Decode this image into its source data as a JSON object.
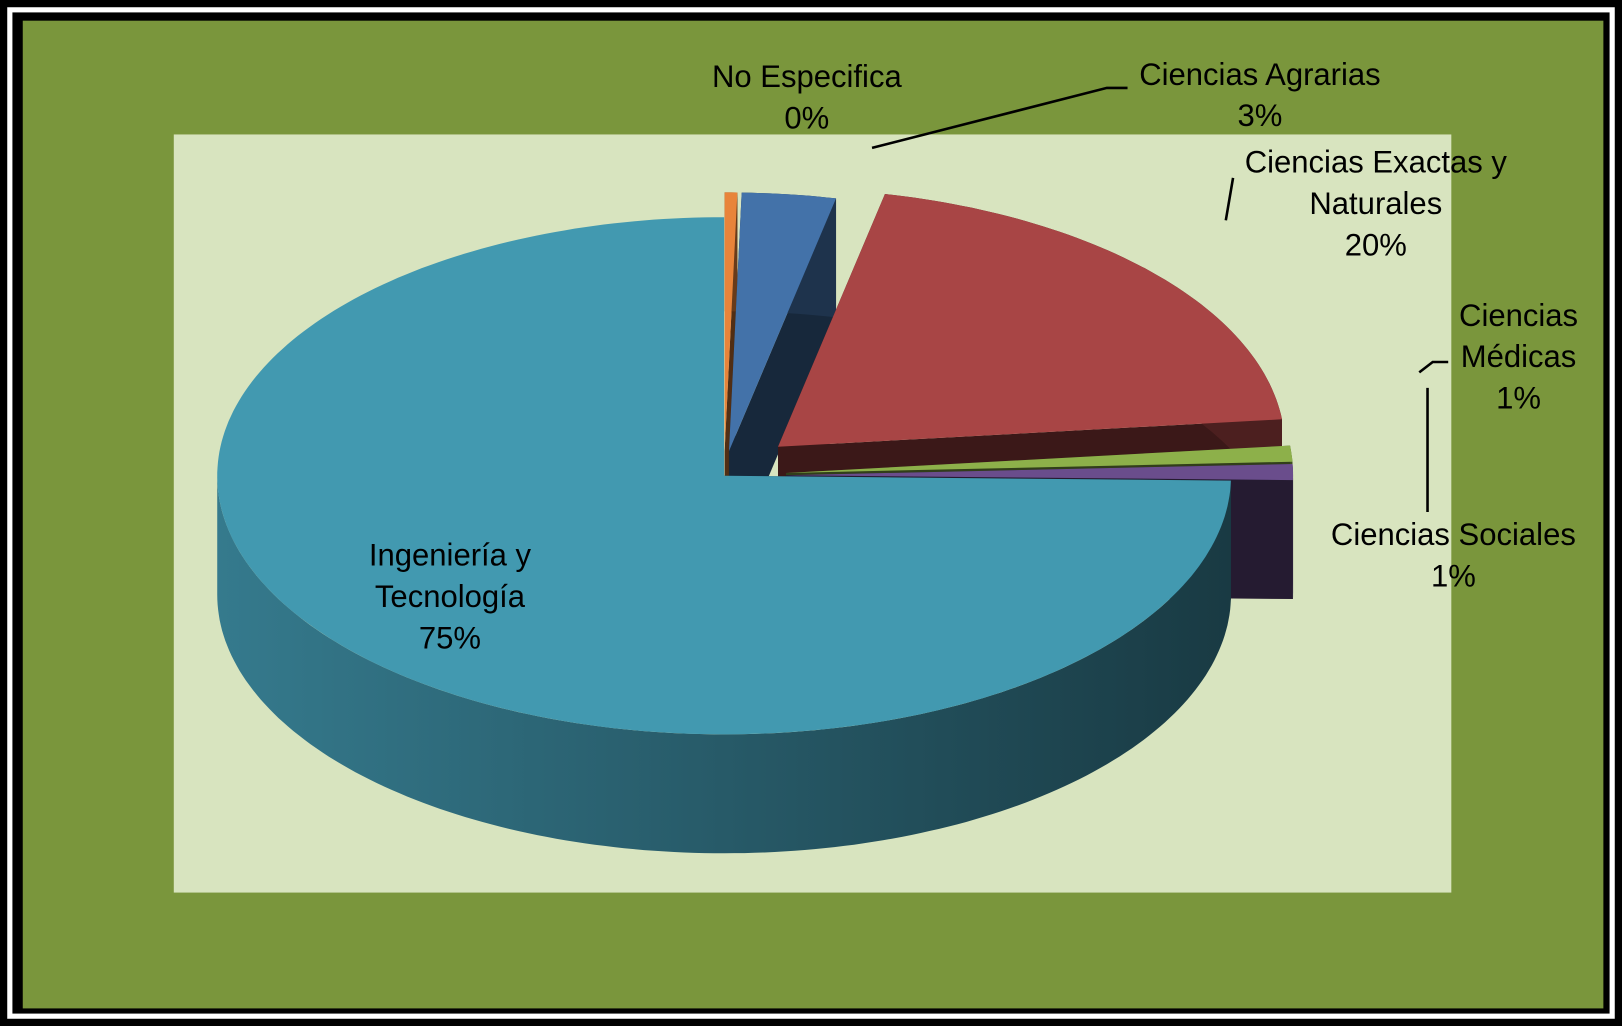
{
  "chart_data": {
    "type": "pie",
    "categories": [
      "No Especifica",
      "Ciencias Agrarias",
      "Ciencias Exactas y Naturales",
      "Ciencias Médicas",
      "Ciencias Sociales",
      "Ingeniería y Tecnología"
    ],
    "values": [
      0.4,
      3,
      20,
      1,
      1,
      75
    ],
    "value_labels": [
      "0%",
      "3%",
      "20%",
      "1%",
      "1%",
      "75%"
    ],
    "colors": [
      "#e8843a",
      "#4372a9",
      "#a84545",
      "#8db04a",
      "#6a4d8c",
      "#4299b0"
    ],
    "three_d": true
  }
}
